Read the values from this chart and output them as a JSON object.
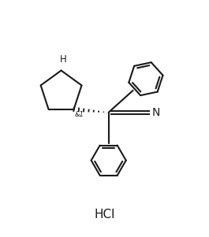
{
  "background_color": "#ffffff",
  "line_color": "#1a1a1a",
  "line_width": 1.5,
  "hcl_text": "HCl",
  "nh_text": "H",
  "stereo_label": "&1",
  "cn_label": "N",
  "fig_width": 2.65,
  "fig_height": 3.01,
  "dpi": 100
}
